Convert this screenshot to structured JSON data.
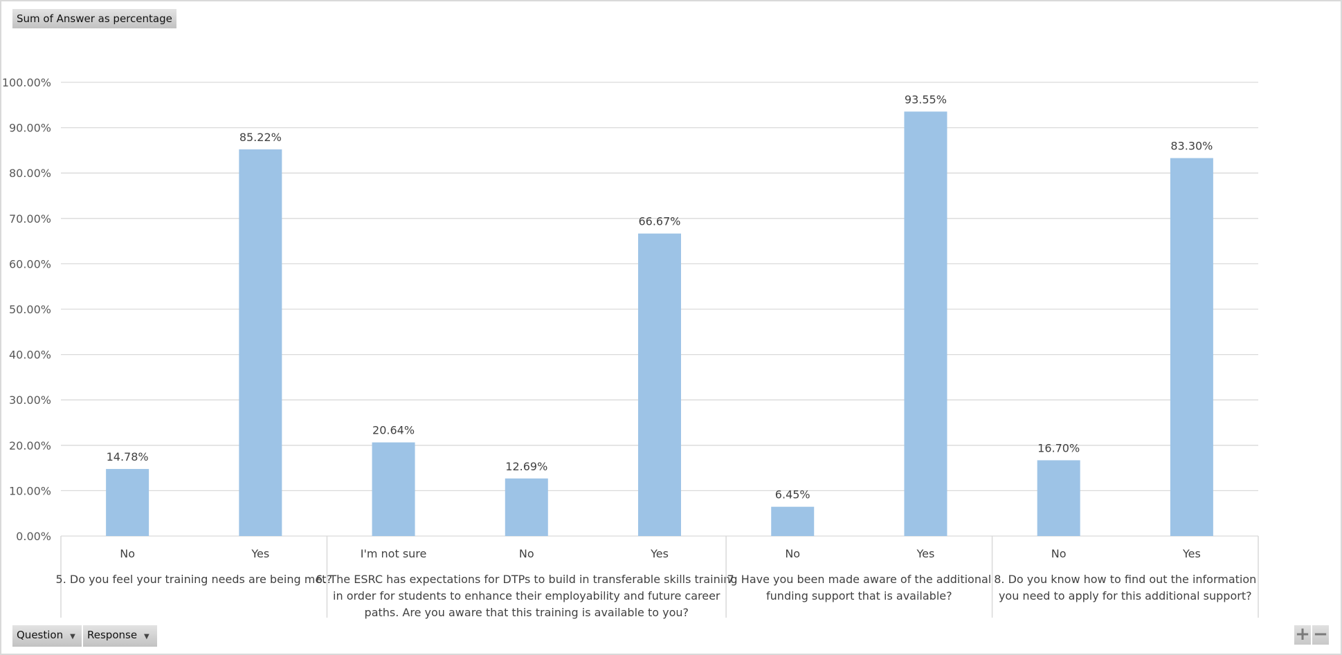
{
  "field_buttons": {
    "value_field": "Sum of Answer as percentage",
    "axis_fields": [
      {
        "label": "Question"
      },
      {
        "label": "Response"
      }
    ]
  },
  "zoom_controls": {
    "plus": "+",
    "minus": "−"
  },
  "colors": {
    "bar": "#9dc3e6",
    "grid": "#d9d9d9"
  },
  "chart_data": {
    "type": "bar",
    "title": "",
    "xlabel": "",
    "ylabel": "",
    "ylim": [
      0,
      1
    ],
    "yticks": [
      "0.00%",
      "10.00%",
      "20.00%",
      "30.00%",
      "40.00%",
      "50.00%",
      "60.00%",
      "70.00%",
      "80.00%",
      "90.00%",
      "100.00%"
    ],
    "grid": true,
    "groups": [
      {
        "label": [
          "5. Do you feel your training needs are being met?"
        ],
        "categories": [
          "No",
          "Yes"
        ],
        "values": [
          0.1478,
          0.8522
        ],
        "labels": [
          "14.78%",
          "85.22%"
        ]
      },
      {
        "label": [
          "6. The ESRC has expectations for DTPs to build in transferable skills training",
          "in order for students to enhance their employability and future career",
          "paths. Are you aware that this training is available to you?"
        ],
        "categories": [
          "I'm not sure",
          "No",
          "Yes"
        ],
        "values": [
          0.2064,
          0.1269,
          0.6667
        ],
        "labels": [
          "20.64%",
          "12.69%",
          "66.67%"
        ]
      },
      {
        "label": [
          "7. Have you been made aware of the additional",
          "funding support that is available?"
        ],
        "categories": [
          "No",
          "Yes"
        ],
        "values": [
          0.0645,
          0.9355
        ],
        "labels": [
          "6.45%",
          "93.55%"
        ]
      },
      {
        "label": [
          "8. Do you know how to find out the information",
          "you need to apply for this additional support?"
        ],
        "categories": [
          "No",
          "Yes"
        ],
        "values": [
          0.167,
          0.833
        ],
        "labels": [
          "16.70%",
          "83.30%"
        ]
      }
    ]
  }
}
